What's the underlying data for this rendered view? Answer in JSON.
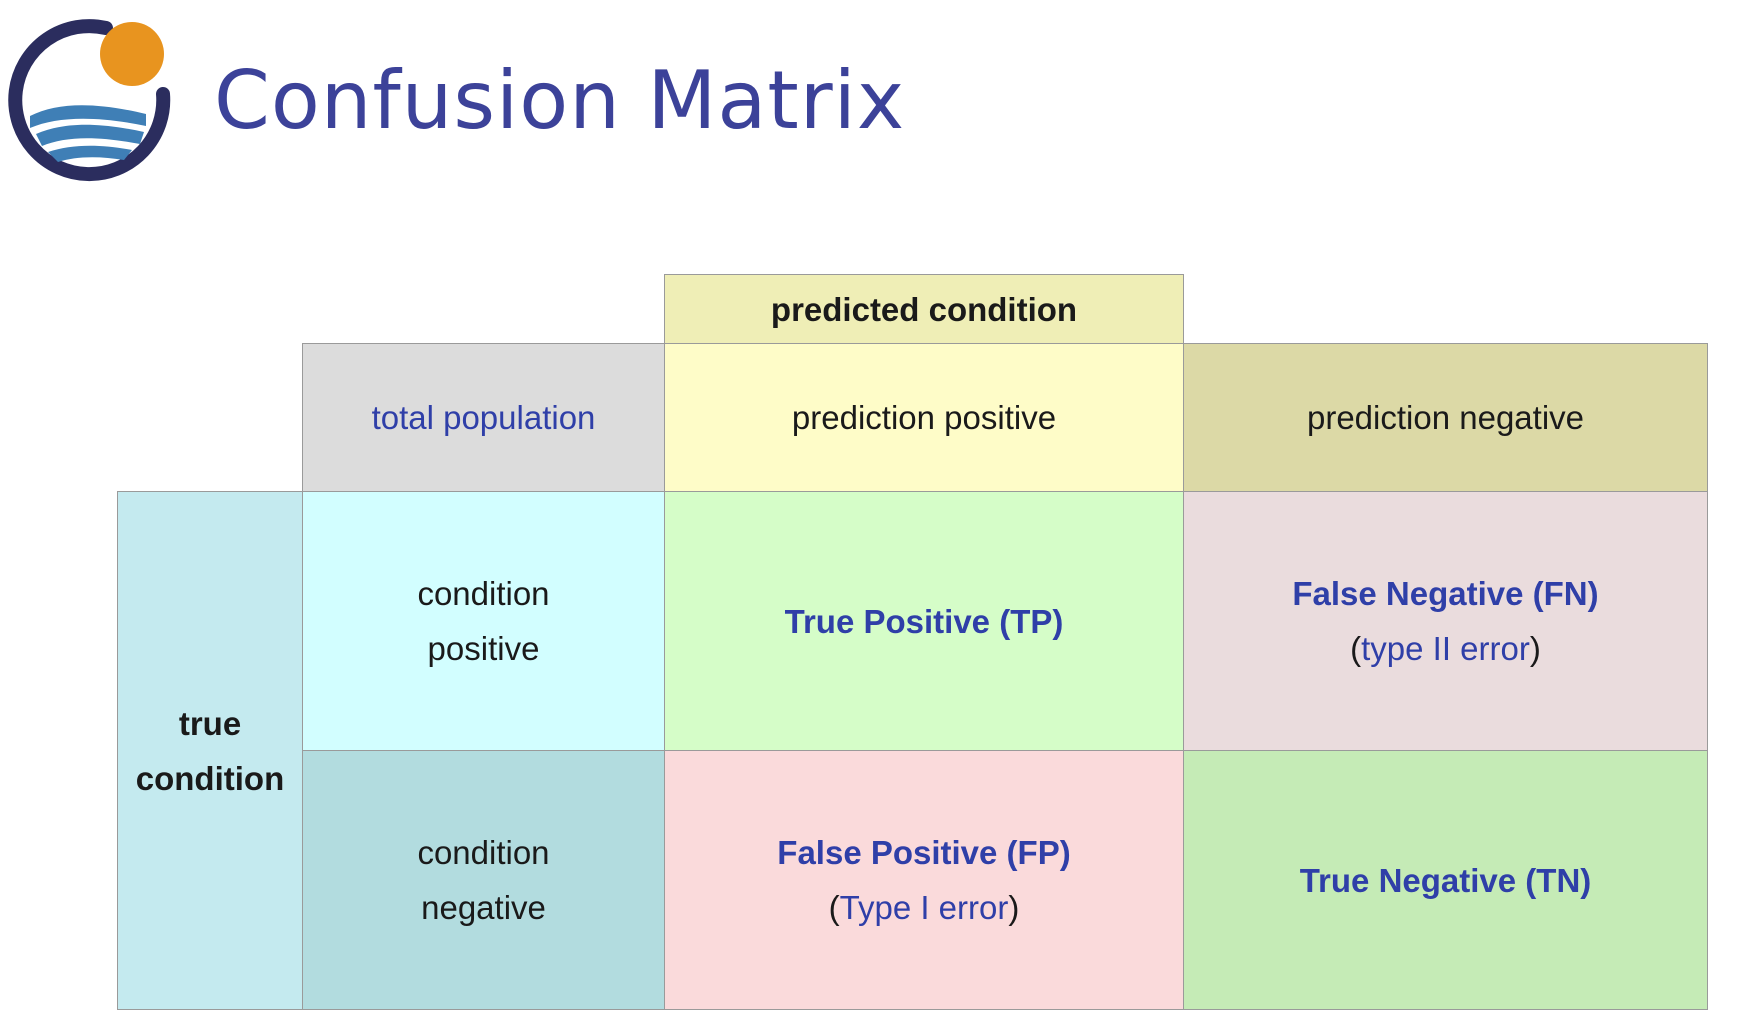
{
  "header": {
    "title": "Confusion Matrix"
  },
  "matrix": {
    "predicted_condition": "predicted condition",
    "total_population": "total population",
    "prediction_positive": "prediction positive",
    "prediction_negative": "prediction negative",
    "true_condition": {
      "line1": "true",
      "line2": "condition"
    },
    "condition_positive": {
      "line1": "condition",
      "line2": "positive"
    },
    "condition_negative": {
      "line1": "condition",
      "line2": "negative"
    },
    "true_positive": "True Positive (TP)",
    "false_negative": {
      "label": "False Negative (FN)",
      "open": "(",
      "note": "type II error",
      "close": ")"
    },
    "false_positive": {
      "label": "False Positive (FP)",
      "open": "(",
      "note": "Type I error",
      "close": ")"
    },
    "true_negative": "True Negative (TN)"
  },
  "colors": {
    "title": "#3c4299",
    "logo_ring": "#2b2d5e",
    "logo_sun": "#e8941f",
    "logo_waves": "#3f7fb6",
    "predicted_header": "#efeeb6",
    "total_population": "#dcdcdc",
    "prediction_positive": "#fefcc8",
    "prediction_negative": "#dcd9a6",
    "true_condition": "#c4eaef",
    "condition_positive": "#d2feff",
    "condition_negative": "#b2dcdf",
    "true_positive": "#d5fdc8",
    "false_negative": "#eadcdd",
    "false_positive": "#fadadb",
    "true_negative": "#c5ebb6"
  }
}
